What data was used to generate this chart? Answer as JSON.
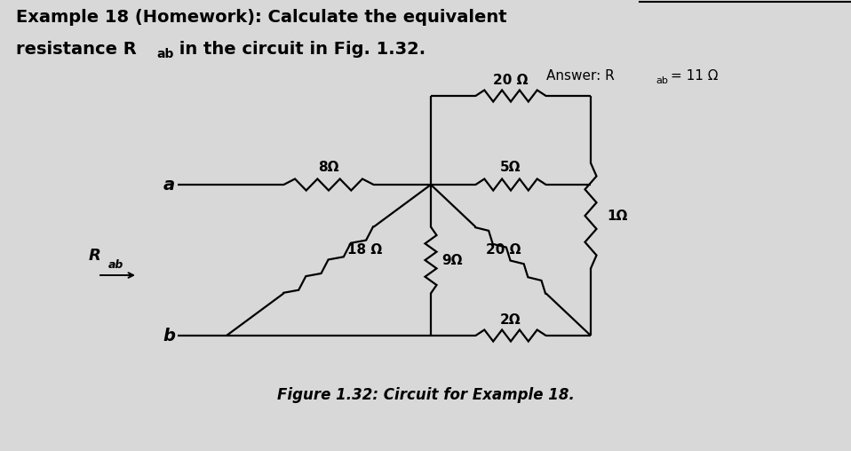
{
  "title_line1": "Example 18 (Homework): Calculate the equivalent",
  "title_line2_pre": "resistance R",
  "title_line2_sub": "ab",
  "title_line2_post": " in the circuit in Fig. 1.32.",
  "answer_pre": "Answer: R",
  "answer_sub": "ab",
  "answer_post": " = 11 Ω",
  "figure_caption": "Figure 1.32: Circuit for Example 18.",
  "bg_color": "#d8d8d8",
  "line_color": "#000000",
  "R8": "8Ω",
  "R5": "5Ω",
  "R20top": "20 Ω",
  "R18": "18 Ω",
  "R9": "9Ω",
  "R20mid": "20 Ω",
  "R2": "2Ω",
  "R1": "1Ω",
  "node_a": "a",
  "node_b": "b",
  "Rab": "R",
  "Rab_sub": "ab",
  "lw": 1.6
}
